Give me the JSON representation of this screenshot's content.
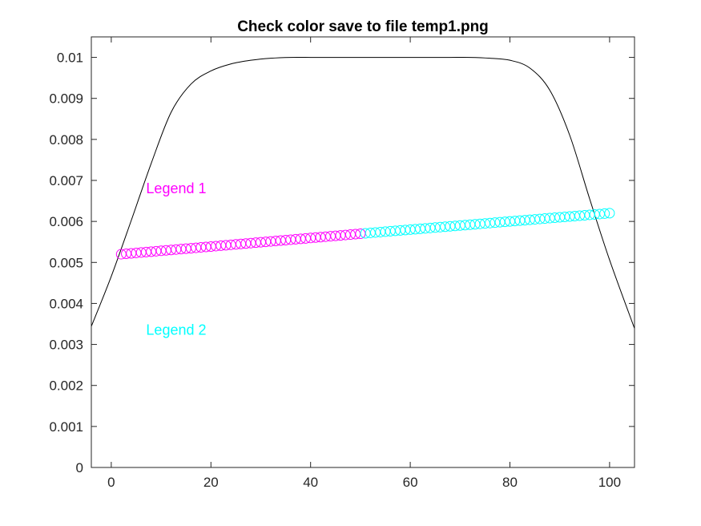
{
  "chart_data": {
    "type": "line",
    "title": "Check color save to file temp1.png",
    "xlabel": "",
    "ylabel": "",
    "xlim": [
      -4,
      105
    ],
    "ylim": [
      0,
      0.0105
    ],
    "x_ticks": [
      0,
      20,
      40,
      60,
      80,
      100
    ],
    "x_tick_labels": [
      "0",
      "20",
      "40",
      "60",
      "80",
      "100"
    ],
    "y_ticks": [
      0,
      0.001,
      0.002,
      0.003,
      0.004,
      0.005,
      0.006,
      0.007,
      0.008,
      0.009,
      0.01
    ],
    "y_tick_labels": [
      "0",
      "0.001",
      "0.002",
      "0.003",
      "0.004",
      "0.005",
      "0.006",
      "0.007",
      "0.008",
      "0.009",
      "0.01"
    ],
    "grid": false,
    "box": true,
    "series": [
      {
        "style": "line",
        "color": "#000000",
        "x": [
          -4,
          0,
          4,
          8,
          12,
          16,
          20,
          24,
          28,
          32,
          36,
          40,
          44,
          48,
          52,
          56,
          60,
          64,
          68,
          72,
          76,
          80,
          84,
          88,
          92,
          96,
          100,
          105
        ],
        "y": [
          0.00344,
          0.00466,
          0.00602,
          0.00741,
          0.00866,
          0.00935,
          0.00967,
          0.00984,
          0.00993,
          0.00998,
          0.01,
          0.01,
          0.01,
          0.01,
          0.01,
          0.01,
          0.01,
          0.01,
          0.01,
          0.01,
          0.00998,
          0.00993,
          0.00974,
          0.0092,
          0.0081,
          0.00655,
          0.00506,
          0.00339
        ]
      },
      {
        "style": "markers",
        "marker": "circle",
        "color": "#ff00ff",
        "x_start": 2,
        "x_end": 50,
        "x_step": 1,
        "y_start": 0.0052,
        "y_end": 0.0057
      },
      {
        "style": "markers",
        "marker": "circle",
        "color": "#00ffff",
        "x_start": 51,
        "x_end": 100,
        "x_step": 1,
        "y_start": 0.00571,
        "y_end": 0.0062
      }
    ],
    "annotations": [
      {
        "text": "Legend 1",
        "x": 7,
        "y": 0.0068,
        "color": "#ff00ff"
      },
      {
        "text": "Legend 2",
        "x": 7,
        "y": 0.00335,
        "color": "#00ffff"
      }
    ]
  }
}
